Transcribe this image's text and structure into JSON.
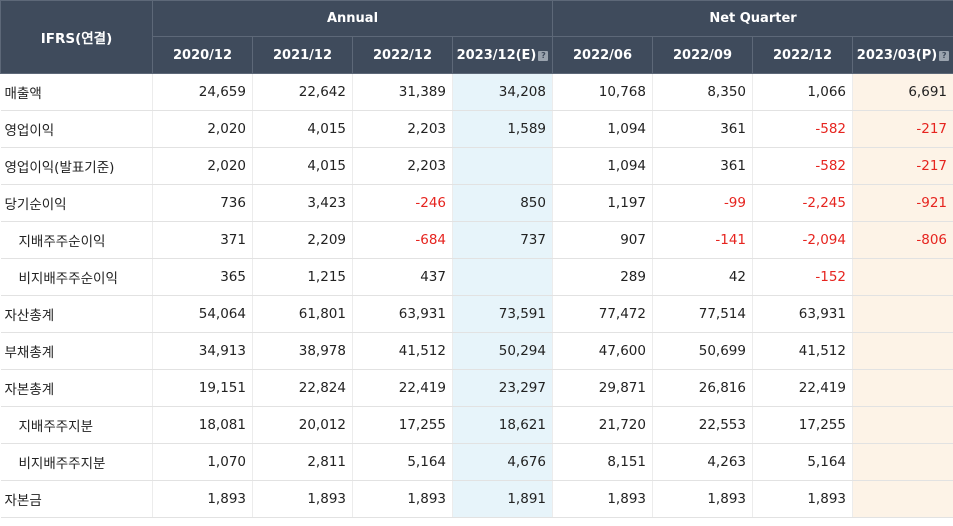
{
  "header": {
    "row_label": "IFRS(연결)",
    "groups": [
      {
        "label": "Annual",
        "span": 4
      },
      {
        "label": "Net Quarter",
        "span": 4
      }
    ],
    "periods": [
      {
        "label": "2020/12",
        "hint": false
      },
      {
        "label": "2021/12",
        "hint": false
      },
      {
        "label": "2022/12",
        "hint": false
      },
      {
        "label": "2023/12(E)",
        "hint": true
      },
      {
        "label": "2022/06",
        "hint": false
      },
      {
        "label": "2022/09",
        "hint": false
      },
      {
        "label": "2022/12",
        "hint": false
      },
      {
        "label": "2023/03(P)",
        "hint": true
      }
    ],
    "hint_icon": "info-icon",
    "hint_glyph": "?"
  },
  "colors": {
    "header_bg": "#3f4b5c",
    "estimate_bg": "#e7f4fa",
    "preliminary_bg": "#fdf3e7",
    "negative": "#e6241f"
  },
  "rows": [
    {
      "label": "매출액",
      "sub": false,
      "values": [
        "24,659",
        "22,642",
        "31,389",
        "34,208",
        "10,768",
        "8,350",
        "1,066",
        "6,691"
      ]
    },
    {
      "label": "영업이익",
      "sub": false,
      "values": [
        "2,020",
        "4,015",
        "2,203",
        "1,589",
        "1,094",
        "361",
        "-582",
        "-217"
      ]
    },
    {
      "label": "영업이익(발표기준)",
      "sub": false,
      "values": [
        "2,020",
        "4,015",
        "2,203",
        "",
        "1,094",
        "361",
        "-582",
        "-217"
      ]
    },
    {
      "label": "당기순이익",
      "sub": false,
      "values": [
        "736",
        "3,423",
        "-246",
        "850",
        "1,197",
        "-99",
        "-2,245",
        "-921"
      ]
    },
    {
      "label": "지배주주순이익",
      "sub": true,
      "values": [
        "371",
        "2,209",
        "-684",
        "737",
        "907",
        "-141",
        "-2,094",
        "-806"
      ]
    },
    {
      "label": "비지배주주순이익",
      "sub": true,
      "values": [
        "365",
        "1,215",
        "437",
        "",
        "289",
        "42",
        "-152",
        ""
      ]
    },
    {
      "label": "자산총계",
      "sub": false,
      "values": [
        "54,064",
        "61,801",
        "63,931",
        "73,591",
        "77,472",
        "77,514",
        "63,931",
        ""
      ]
    },
    {
      "label": "부채총계",
      "sub": false,
      "values": [
        "34,913",
        "38,978",
        "41,512",
        "50,294",
        "47,600",
        "50,699",
        "41,512",
        ""
      ]
    },
    {
      "label": "자본총계",
      "sub": false,
      "values": [
        "19,151",
        "22,824",
        "22,419",
        "23,297",
        "29,871",
        "26,816",
        "22,419",
        ""
      ]
    },
    {
      "label": "지배주주지분",
      "sub": true,
      "values": [
        "18,081",
        "20,012",
        "17,255",
        "18,621",
        "21,720",
        "22,553",
        "17,255",
        ""
      ]
    },
    {
      "label": "비지배주주지분",
      "sub": true,
      "values": [
        "1,070",
        "2,811",
        "5,164",
        "4,676",
        "8,151",
        "4,263",
        "5,164",
        ""
      ]
    },
    {
      "label": "자본금",
      "sub": false,
      "values": [
        "1,893",
        "1,893",
        "1,893",
        "1,891",
        "1,893",
        "1,893",
        "1,893",
        ""
      ]
    }
  ]
}
